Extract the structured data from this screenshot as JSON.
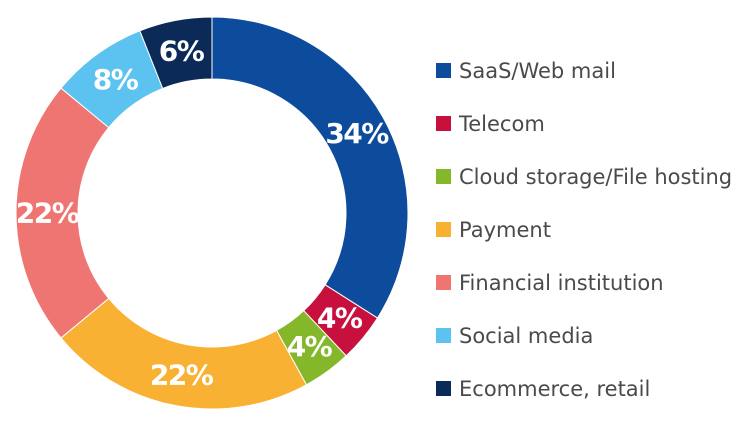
{
  "chart_data": {
    "type": "pie",
    "style": "donut",
    "categories": [
      "SaaS/Web mail",
      "Telecom",
      "Cloud storage/File hosting",
      "Payment",
      "Financial institution",
      "Social media",
      "Ecommerce, retail"
    ],
    "values": [
      34,
      4,
      4,
      22,
      22,
      8,
      6
    ],
    "data_labels": [
      "34%",
      "4%",
      "4%",
      "22%",
      "22%",
      "8%",
      "6%"
    ],
    "colors": [
      "#0d4c9c",
      "#c8103e",
      "#84b72a",
      "#f8b133",
      "#ef7572",
      "#5cc3f0",
      "#0b2a58"
    ],
    "unit": "%",
    "legend_placement": "right",
    "title": "",
    "xlabel": "",
    "ylabel": ""
  }
}
